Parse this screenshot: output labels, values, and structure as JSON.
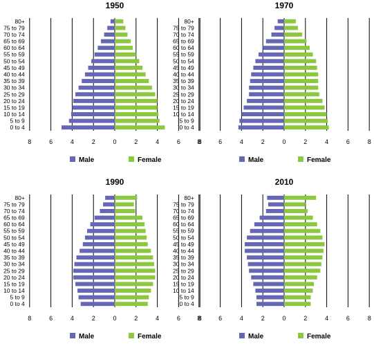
{
  "colors": {
    "male": "#6567b5",
    "female": "#8cc83f",
    "grid": "#000000"
  },
  "chart_data": [
    {
      "type": "bar",
      "orientation": "horizontal",
      "title": "1950",
      "categories": [
        "80+",
        "75 to 79",
        "70 to 74",
        "65 to 69",
        "60 to 64",
        "55 to 59",
        "50 to 54",
        "45 to 49",
        "40 to 44",
        "35 to 39",
        "30 to 34",
        "25 to 29",
        "20 to 24",
        "15 to 19",
        "10 to 14",
        "5 to 9",
        "0 to 4"
      ],
      "series": [
        {
          "name": "Male",
          "values": [
            0.4,
            0.7,
            1.0,
            1.3,
            1.6,
            1.9,
            2.2,
            2.5,
            2.8,
            3.1,
            3.4,
            3.7,
            3.9,
            4.0,
            4.1,
            4.3,
            5.0
          ]
        },
        {
          "name": "Female",
          "values": [
            0.8,
            1.0,
            1.2,
            1.5,
            1.7,
            2.0,
            2.3,
            2.6,
            2.9,
            3.2,
            3.5,
            3.8,
            4.0,
            4.0,
            4.1,
            4.2,
            4.7
          ]
        }
      ],
      "xticks": [
        "8",
        "6",
        "4",
        "2",
        "0",
        "2",
        "4",
        "6",
        "8"
      ],
      "xlim": [
        -8,
        8
      ],
      "grid": true,
      "legend": "bottom"
    },
    {
      "type": "bar",
      "orientation": "horizontal",
      "title": "1970",
      "categories": [
        "80+",
        "75 to 79",
        "70 to 74",
        "65 to 69",
        "60 to 64",
        "55 to 59",
        "50 to 54",
        "45 to 49",
        "40 to 44",
        "35 to 39",
        "30 to 34",
        "25 to 29",
        "20 to 24",
        "15 to 19",
        "10 to 14",
        "5 to 9",
        "0 to 4"
      ],
      "series": [
        {
          "name": "Male",
          "values": [
            0.6,
            0.9,
            1.2,
            1.7,
            2.0,
            2.4,
            2.7,
            2.9,
            3.1,
            3.2,
            3.3,
            3.3,
            3.5,
            3.8,
            4.0,
            4.2,
            4.3
          ]
        },
        {
          "name": "Female",
          "values": [
            1.1,
            1.3,
            1.7,
            2.1,
            2.4,
            2.7,
            3.0,
            3.1,
            3.2,
            3.2,
            3.2,
            3.3,
            3.6,
            3.8,
            4.0,
            4.1,
            4.2
          ]
        }
      ],
      "xticks": [
        "8",
        "6",
        "4",
        "2",
        "0",
        "2",
        "4",
        "6",
        "8"
      ],
      "xlim": [
        -8,
        8
      ],
      "grid": true,
      "legend": "bottom"
    },
    {
      "type": "bar",
      "orientation": "horizontal",
      "title": "1990",
      "categories": [
        "80+",
        "75 to 79",
        "70 to 74",
        "65 to 69",
        "60 to 64",
        "55 to 59",
        "50 to 54",
        "45 to 49",
        "40 to 44",
        "35 to 39",
        "30 to 34",
        "25 to 29",
        "20 to 24",
        "15 to 19",
        "10 to 14",
        "5 to 9",
        "0 to 4"
      ],
      "series": [
        {
          "name": "Male",
          "values": [
            0.9,
            1.1,
            1.4,
            1.9,
            2.3,
            2.6,
            2.8,
            3.0,
            3.3,
            3.6,
            3.8,
            3.9,
            3.9,
            3.7,
            3.5,
            3.4,
            3.2
          ]
        },
        {
          "name": "Female",
          "values": [
            2.1,
            1.8,
            1.9,
            2.6,
            2.8,
            2.9,
            3.0,
            3.1,
            3.4,
            3.6,
            3.7,
            3.8,
            3.8,
            3.6,
            3.4,
            3.2,
            3.1
          ]
        }
      ],
      "xticks": [
        "8",
        "6",
        "4",
        "2",
        "0",
        "2",
        "4",
        "6",
        "8"
      ],
      "xlim": [
        -8,
        8
      ],
      "grid": true,
      "legend": "bottom"
    },
    {
      "type": "bar",
      "orientation": "horizontal",
      "title": "2010",
      "categories": [
        "80+",
        "75 to 79",
        "70 to 74",
        "65 to 69",
        "60 to 64",
        "55 to 59",
        "50 to 54",
        "45 to 49",
        "40 to 44",
        "35 to 39",
        "30 to 34",
        "25 to 29",
        "20 to 24",
        "15 to 19",
        "10 to 14",
        "5 to 9",
        "0 to 4"
      ],
      "series": [
        {
          "name": "Male",
          "values": [
            1.6,
            1.5,
            1.7,
            2.3,
            2.8,
            3.2,
            3.5,
            3.7,
            3.7,
            3.5,
            3.4,
            3.3,
            3.1,
            2.9,
            2.7,
            2.6,
            2.6
          ]
        },
        {
          "name": "Female",
          "values": [
            3.0,
            2.0,
            2.2,
            2.7,
            3.1,
            3.4,
            3.6,
            3.8,
            3.7,
            3.6,
            3.5,
            3.4,
            3.1,
            2.8,
            2.7,
            2.5,
            2.5
          ]
        }
      ],
      "xticks": [
        "8",
        "6",
        "4",
        "2",
        "0",
        "2",
        "4",
        "6",
        "8"
      ],
      "xlim": [
        -8,
        8
      ],
      "grid": true,
      "legend": "bottom"
    }
  ]
}
